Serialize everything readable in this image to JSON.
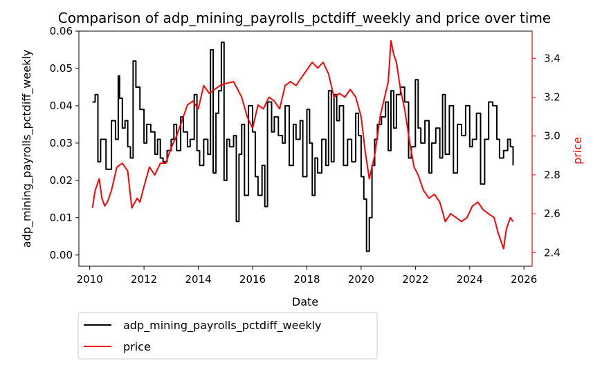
{
  "chart_data": {
    "type": "line",
    "title": "Comparison of adp_mining_payrolls_pctdiff_weekly and price over time",
    "xlabel": "Date",
    "ylabel_left": "adp_mining_payrolls_pctdiff_weekly",
    "ylabel_right": "price",
    "xlim": [
      2009.6,
      2026.3
    ],
    "ylim_left": [
      -0.003,
      0.06
    ],
    "ylim_right": [
      2.33,
      3.54
    ],
    "x_ticks": [
      2010,
      2012,
      2014,
      2016,
      2018,
      2020,
      2022,
      2024,
      2026
    ],
    "y_ticks_left": [
      "0.00",
      "0.01",
      "0.02",
      "0.03",
      "0.04",
      "0.05",
      "0.06"
    ],
    "y_ticks_right": [
      "2.4",
      "2.6",
      "2.8",
      "3.0",
      "3.2",
      "3.4"
    ],
    "grid": false,
    "legend_position": "below",
    "series": [
      {
        "name": "adp_mining_payrolls_pctdiff_weekly",
        "axis": "left",
        "color": "#000000",
        "step": true,
        "x": [
          2010.1,
          2010.2,
          2010.3,
          2010.4,
          2010.6,
          2010.8,
          2010.95,
          2011.05,
          2011.1,
          2011.2,
          2011.3,
          2011.4,
          2011.5,
          2011.6,
          2011.7,
          2011.85,
          2012.0,
          2012.1,
          2012.25,
          2012.4,
          2012.5,
          2012.6,
          2012.7,
          2012.85,
          2013.0,
          2013.1,
          2013.2,
          2013.35,
          2013.45,
          2013.6,
          2013.7,
          2013.85,
          2013.95,
          2014.05,
          2014.2,
          2014.35,
          2014.45,
          2014.55,
          2014.65,
          2014.75,
          2014.85,
          2014.95,
          2015.05,
          2015.15,
          2015.3,
          2015.4,
          2015.5,
          2015.6,
          2015.7,
          2015.85,
          2016.0,
          2016.1,
          2016.2,
          2016.35,
          2016.45,
          2016.55,
          2016.7,
          2016.8,
          2016.95,
          2017.1,
          2017.2,
          2017.35,
          2017.5,
          2017.6,
          2017.75,
          2017.85,
          2018.0,
          2018.1,
          2018.2,
          2018.3,
          2018.4,
          2018.55,
          2018.7,
          2018.8,
          2018.9,
          2019.0,
          2019.1,
          2019.2,
          2019.35,
          2019.5,
          2019.65,
          2019.8,
          2019.9,
          2020.0,
          2020.1,
          2020.2,
          2020.3,
          2020.4,
          2020.5,
          2020.6,
          2020.75,
          2020.9,
          2021.0,
          2021.1,
          2021.2,
          2021.3,
          2021.45,
          2021.6,
          2021.75,
          2021.85,
          2022.0,
          2022.1,
          2022.2,
          2022.35,
          2022.5,
          2022.6,
          2022.75,
          2022.9,
          2023.0,
          2023.1,
          2023.25,
          2023.4,
          2023.55,
          2023.7,
          2023.85,
          2024.0,
          2024.1,
          2024.25,
          2024.4,
          2024.55,
          2024.7,
          2024.85,
          2025.0,
          2025.1,
          2025.25,
          2025.4,
          2025.5,
          2025.6
        ],
        "values": [
          0.041,
          0.043,
          0.025,
          0.031,
          0.023,
          0.036,
          0.031,
          0.048,
          0.042,
          0.034,
          0.036,
          0.029,
          0.026,
          0.052,
          0.045,
          0.039,
          0.03,
          0.035,
          0.033,
          0.027,
          0.031,
          0.026,
          0.025,
          0.028,
          0.031,
          0.035,
          0.028,
          0.037,
          0.033,
          0.029,
          0.031,
          0.043,
          0.028,
          0.024,
          0.031,
          0.027,
          0.055,
          0.022,
          0.038,
          0.044,
          0.057,
          0.02,
          0.031,
          0.029,
          0.032,
          0.009,
          0.027,
          0.035,
          0.016,
          0.04,
          0.033,
          0.021,
          0.016,
          0.024,
          0.013,
          0.041,
          0.033,
          0.037,
          0.032,
          0.03,
          0.04,
          0.024,
          0.035,
          0.031,
          0.036,
          0.021,
          0.039,
          0.03,
          0.016,
          0.026,
          0.022,
          0.031,
          0.024,
          0.044,
          0.025,
          0.043,
          0.036,
          0.04,
          0.024,
          0.031,
          0.025,
          0.038,
          0.032,
          0.021,
          0.015,
          0.001,
          0.01,
          0.024,
          0.031,
          0.035,
          0.037,
          0.041,
          0.028,
          0.044,
          0.034,
          0.043,
          0.045,
          0.041,
          0.026,
          0.029,
          0.047,
          0.034,
          0.03,
          0.036,
          0.022,
          0.03,
          0.034,
          0.026,
          0.043,
          0.027,
          0.04,
          0.022,
          0.035,
          0.032,
          0.04,
          0.029,
          0.031,
          0.038,
          0.019,
          0.031,
          0.041,
          0.04,
          0.031,
          0.026,
          0.028,
          0.031,
          0.029,
          0.024
        ]
      },
      {
        "name": "price",
        "axis": "right",
        "color": "#ff0000",
        "step": false,
        "x": [
          2010.1,
          2010.2,
          2010.35,
          2010.45,
          2010.55,
          2010.65,
          2010.8,
          2011.0,
          2011.2,
          2011.4,
          2011.55,
          2011.75,
          2011.85,
          2012.0,
          2012.2,
          2012.4,
          2012.6,
          2012.8,
          2013.0,
          2013.2,
          2013.4,
          2013.6,
          2013.8,
          2014.0,
          2014.2,
          2014.4,
          2014.6,
          2014.8,
          2015.0,
          2015.3,
          2015.6,
          2015.8,
          2016.0,
          2016.2,
          2016.4,
          2016.6,
          2016.8,
          2017.0,
          2017.2,
          2017.4,
          2017.6,
          2017.8,
          2018.0,
          2018.2,
          2018.4,
          2018.6,
          2018.8,
          2019.0,
          2019.2,
          2019.4,
          2019.6,
          2019.8,
          2020.0,
          2020.15,
          2020.3,
          2020.5,
          2020.7,
          2020.9,
          2021.0,
          2021.1,
          2021.2,
          2021.3,
          2021.45,
          2021.6,
          2021.8,
          2021.95,
          2022.1,
          2022.3,
          2022.5,
          2022.7,
          2022.9,
          2023.1,
          2023.3,
          2023.5,
          2023.7,
          2023.9,
          2024.1,
          2024.3,
          2024.5,
          2024.7,
          2024.9,
          2025.05,
          2025.15,
          2025.25,
          2025.35,
          2025.5,
          2025.6
        ],
        "values": [
          2.63,
          2.72,
          2.78,
          2.68,
          2.64,
          2.66,
          2.72,
          2.84,
          2.86,
          2.82,
          2.63,
          2.68,
          2.66,
          2.74,
          2.84,
          2.8,
          2.86,
          2.86,
          2.94,
          3.0,
          3.08,
          3.16,
          3.18,
          3.14,
          3.26,
          3.22,
          3.24,
          3.26,
          3.27,
          3.28,
          3.2,
          3.1,
          3.04,
          3.16,
          3.14,
          3.2,
          3.18,
          3.14,
          3.26,
          3.28,
          3.26,
          3.3,
          3.34,
          3.38,
          3.35,
          3.38,
          3.32,
          3.2,
          3.22,
          3.2,
          3.24,
          3.2,
          3.1,
          2.92,
          2.78,
          2.9,
          3.1,
          3.22,
          3.28,
          3.49,
          3.42,
          3.38,
          3.24,
          3.14,
          2.96,
          2.84,
          2.8,
          2.72,
          2.68,
          2.7,
          2.66,
          2.56,
          2.6,
          2.58,
          2.56,
          2.58,
          2.64,
          2.66,
          2.62,
          2.6,
          2.58,
          2.5,
          2.46,
          2.42,
          2.52,
          2.58,
          2.56
        ]
      }
    ]
  }
}
